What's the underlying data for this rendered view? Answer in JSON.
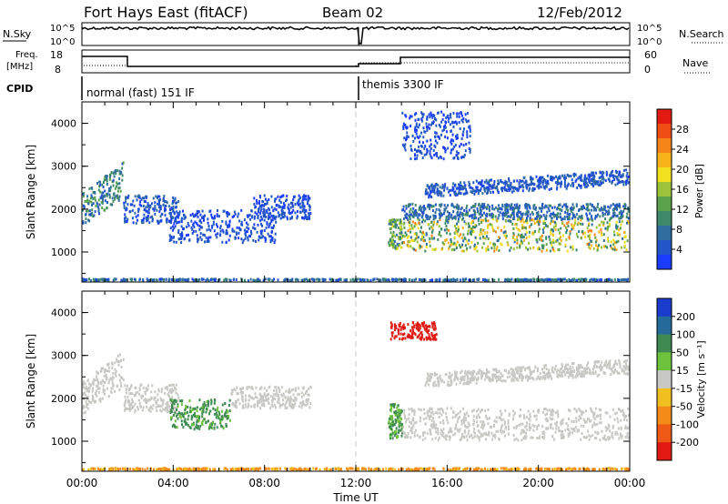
{
  "header": {
    "station": "Fort Hays East (fitACF)",
    "beam": "Beam 02",
    "date": "12/Feb/2012"
  },
  "noise_panel": {
    "left_label": "N.Sky",
    "right_label": "N.Search",
    "left_ticks": [
      "10^5",
      "10^0"
    ],
    "right_ticks": [
      "10^5",
      "10^0"
    ]
  },
  "freq_panel": {
    "left_label_1": "Freq.",
    "left_label_2": "[MHz]",
    "left_ticks": [
      "18",
      "8"
    ],
    "right_label": "Nave",
    "right_ticks": [
      "60",
      "0"
    ]
  },
  "cpid_panel": {
    "label": "CPID",
    "modes": [
      {
        "start_hour": 0,
        "end_hour": 12,
        "label": "normal (fast) 151 IF"
      },
      {
        "start_hour": 12,
        "end_hour": 24,
        "label": "themis 3300 IF"
      }
    ]
  },
  "power_colorbar": {
    "label": "Power [dB]",
    "ticks": [
      "4",
      "8",
      "12",
      "16",
      "20",
      "24",
      "28"
    ],
    "colors": [
      "#1a3cff",
      "#2255c8",
      "#2e6d9e",
      "#3f8a6a",
      "#5aa24c",
      "#9cc33a",
      "#f0e020",
      "#f7b31a",
      "#f48418",
      "#ee4e14",
      "#e21b12"
    ]
  },
  "velocity_colorbar": {
    "label": "Velocity [m s⁻¹]",
    "ticks": [
      "200",
      "100",
      "50",
      "15",
      "-15",
      "-50",
      "-100",
      "-200"
    ],
    "colors": [
      "#1a3ccc",
      "#246a9a",
      "#3e8a52",
      "#6cc23a",
      "#c8c8c4",
      "#f0c020",
      "#f48a18",
      "#ee5a16",
      "#e01a12"
    ]
  },
  "chart_data": [
    {
      "type": "heatmap",
      "name": "power",
      "ylabel": "Slant Range [km]",
      "xlim": [
        0,
        24
      ],
      "ylim": [
        300,
        4500
      ],
      "yticks": [
        1000,
        2000,
        3000,
        4000
      ],
      "regions": [
        {
          "t0": 0.0,
          "t1": 1.8,
          "r0": 1650,
          "r1": 2400,
          "r0_end": 2300,
          "r1_end": 3150,
          "value": 10,
          "spread": 4
        },
        {
          "t0": 1.8,
          "t1": 4.2,
          "r0": 1700,
          "r1": 2350,
          "value": 6,
          "spread": 3
        },
        {
          "t0": 3.8,
          "t1": 8.5,
          "r0": 1250,
          "r1": 2000,
          "value": 5,
          "spread": 2
        },
        {
          "t0": 7.5,
          "t1": 10.0,
          "r0": 1800,
          "r1": 2350,
          "value": 5,
          "spread": 2
        },
        {
          "t0": 13.4,
          "t1": 14.0,
          "r0": 1100,
          "r1": 1800,
          "value": 14,
          "spread": 6
        },
        {
          "t0": 14.0,
          "t1": 24.0,
          "r0": 1050,
          "r1": 1800,
          "value": 16,
          "spread": 8
        },
        {
          "t0": 14.0,
          "t1": 24.0,
          "r0": 1800,
          "r1": 2150,
          "value": 8,
          "spread": 3
        },
        {
          "t0": 15.0,
          "t1": 24.0,
          "r0": 2300,
          "r1": 2600,
          "r0_end": 2600,
          "r1_end": 2950,
          "value": 6,
          "spread": 2
        },
        {
          "t0": 14.0,
          "t1": 17.0,
          "r0": 3200,
          "r1": 4300,
          "value": 5,
          "spread": 2
        },
        {
          "t0": 0.0,
          "t1": 24.0,
          "r0": 300,
          "r1": 400,
          "value": 8,
          "spread": 4
        }
      ]
    },
    {
      "type": "heatmap",
      "name": "velocity",
      "ylabel": "Slant Range [km]",
      "xlabel": "Time UT",
      "xlim": [
        0,
        24
      ],
      "ylim": [
        300,
        4500
      ],
      "yticks": [
        1000,
        2000,
        3000,
        4000
      ],
      "xticks": [
        "00:00",
        "04:00",
        "08:00",
        "12:00",
        "16:00",
        "20:00",
        "00:00"
      ],
      "regions": [
        {
          "t0": 0.0,
          "t1": 1.8,
          "r0": 1650,
          "r1": 2400,
          "r0_end": 2300,
          "r1_end": 3150,
          "value": 0,
          "spread": 10
        },
        {
          "t0": 1.8,
          "t1": 4.2,
          "r0": 1700,
          "r1": 2350,
          "value": 0,
          "spread": 8
        },
        {
          "t0": 3.8,
          "t1": 6.5,
          "r0": 1300,
          "r1": 2000,
          "value": 40,
          "spread": 15
        },
        {
          "t0": 6.5,
          "t1": 10.0,
          "r0": 1800,
          "r1": 2300,
          "value": 0,
          "spread": 10
        },
        {
          "t0": 13.4,
          "t1": 14.0,
          "r0": 1100,
          "r1": 1900,
          "value": 35,
          "spread": 15
        },
        {
          "t0": 14.0,
          "t1": 24.0,
          "r0": 1050,
          "r1": 1800,
          "value": 0,
          "spread": 10
        },
        {
          "t0": 15.0,
          "t1": 24.0,
          "r0": 2300,
          "r1": 2600,
          "r0_end": 2600,
          "r1_end": 2950,
          "value": 0,
          "spread": 10
        },
        {
          "t0": 13.5,
          "t1": 15.5,
          "r0": 3400,
          "r1": 3800,
          "value": -200,
          "spread": 20
        },
        {
          "t0": 0.0,
          "t1": 24.0,
          "r0": 300,
          "r1": 400,
          "value": -40,
          "spread": 20
        }
      ]
    }
  ]
}
